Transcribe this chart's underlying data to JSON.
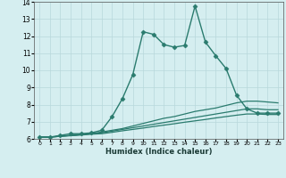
{
  "xlabel": "Humidex (Indice chaleur)",
  "xlim": [
    -0.5,
    23.5
  ],
  "ylim": [
    6,
    14
  ],
  "xticks": [
    0,
    1,
    2,
    3,
    4,
    5,
    6,
    7,
    8,
    9,
    10,
    11,
    12,
    13,
    14,
    15,
    16,
    17,
    18,
    19,
    20,
    21,
    22,
    23
  ],
  "yticks": [
    6,
    7,
    8,
    9,
    10,
    11,
    12,
    13,
    14
  ],
  "bg_color": "#d5eef0",
  "line_color": "#2a7b6e",
  "grid_color": "#b8d8db",
  "lines": [
    {
      "x": [
        0,
        1,
        2,
        3,
        4,
        5,
        6,
        7,
        8,
        9,
        10,
        11,
        12,
        13,
        14,
        15,
        16,
        17,
        18,
        19,
        20,
        21,
        22,
        23
      ],
      "y": [
        6.1,
        6.1,
        6.2,
        6.3,
        6.3,
        6.35,
        6.5,
        7.3,
        8.35,
        9.75,
        12.25,
        12.1,
        11.5,
        11.35,
        11.45,
        13.75,
        11.65,
        10.85,
        10.1,
        8.55,
        7.75,
        7.5,
        7.5,
        7.5
      ],
      "marker": "D",
      "markersize": 2.5,
      "linewidth": 1.0,
      "has_marker": true
    },
    {
      "x": [
        0,
        1,
        2,
        3,
        4,
        5,
        6,
        7,
        8,
        9,
        10,
        11,
        12,
        13,
        14,
        15,
        16,
        17,
        18,
        19,
        20,
        21,
        22,
        23
      ],
      "y": [
        6.1,
        6.1,
        6.15,
        6.2,
        6.25,
        6.3,
        6.4,
        6.5,
        6.6,
        6.75,
        6.9,
        7.05,
        7.2,
        7.3,
        7.45,
        7.6,
        7.7,
        7.8,
        7.95,
        8.1,
        8.2,
        8.2,
        8.15,
        8.1
      ],
      "marker": null,
      "markersize": 0,
      "linewidth": 0.9,
      "has_marker": false
    },
    {
      "x": [
        0,
        1,
        2,
        3,
        4,
        5,
        6,
        7,
        8,
        9,
        10,
        11,
        12,
        13,
        14,
        15,
        16,
        17,
        18,
        19,
        20,
        21,
        22,
        23
      ],
      "y": [
        6.1,
        6.1,
        6.15,
        6.2,
        6.25,
        6.3,
        6.35,
        6.45,
        6.55,
        6.65,
        6.75,
        6.85,
        6.95,
        7.05,
        7.15,
        7.25,
        7.35,
        7.45,
        7.55,
        7.65,
        7.75,
        7.75,
        7.7,
        7.7
      ],
      "marker": null,
      "markersize": 0,
      "linewidth": 0.9,
      "has_marker": false
    },
    {
      "x": [
        0,
        1,
        2,
        3,
        4,
        5,
        6,
        7,
        8,
        9,
        10,
        11,
        12,
        13,
        14,
        15,
        16,
        17,
        18,
        19,
        20,
        21,
        22,
        23
      ],
      "y": [
        6.1,
        6.1,
        6.15,
        6.18,
        6.22,
        6.27,
        6.3,
        6.38,
        6.47,
        6.55,
        6.63,
        6.72,
        6.8,
        6.88,
        6.97,
        7.05,
        7.13,
        7.22,
        7.3,
        7.38,
        7.45,
        7.45,
        7.42,
        7.42
      ],
      "marker": null,
      "markersize": 0,
      "linewidth": 0.9,
      "has_marker": false
    }
  ]
}
